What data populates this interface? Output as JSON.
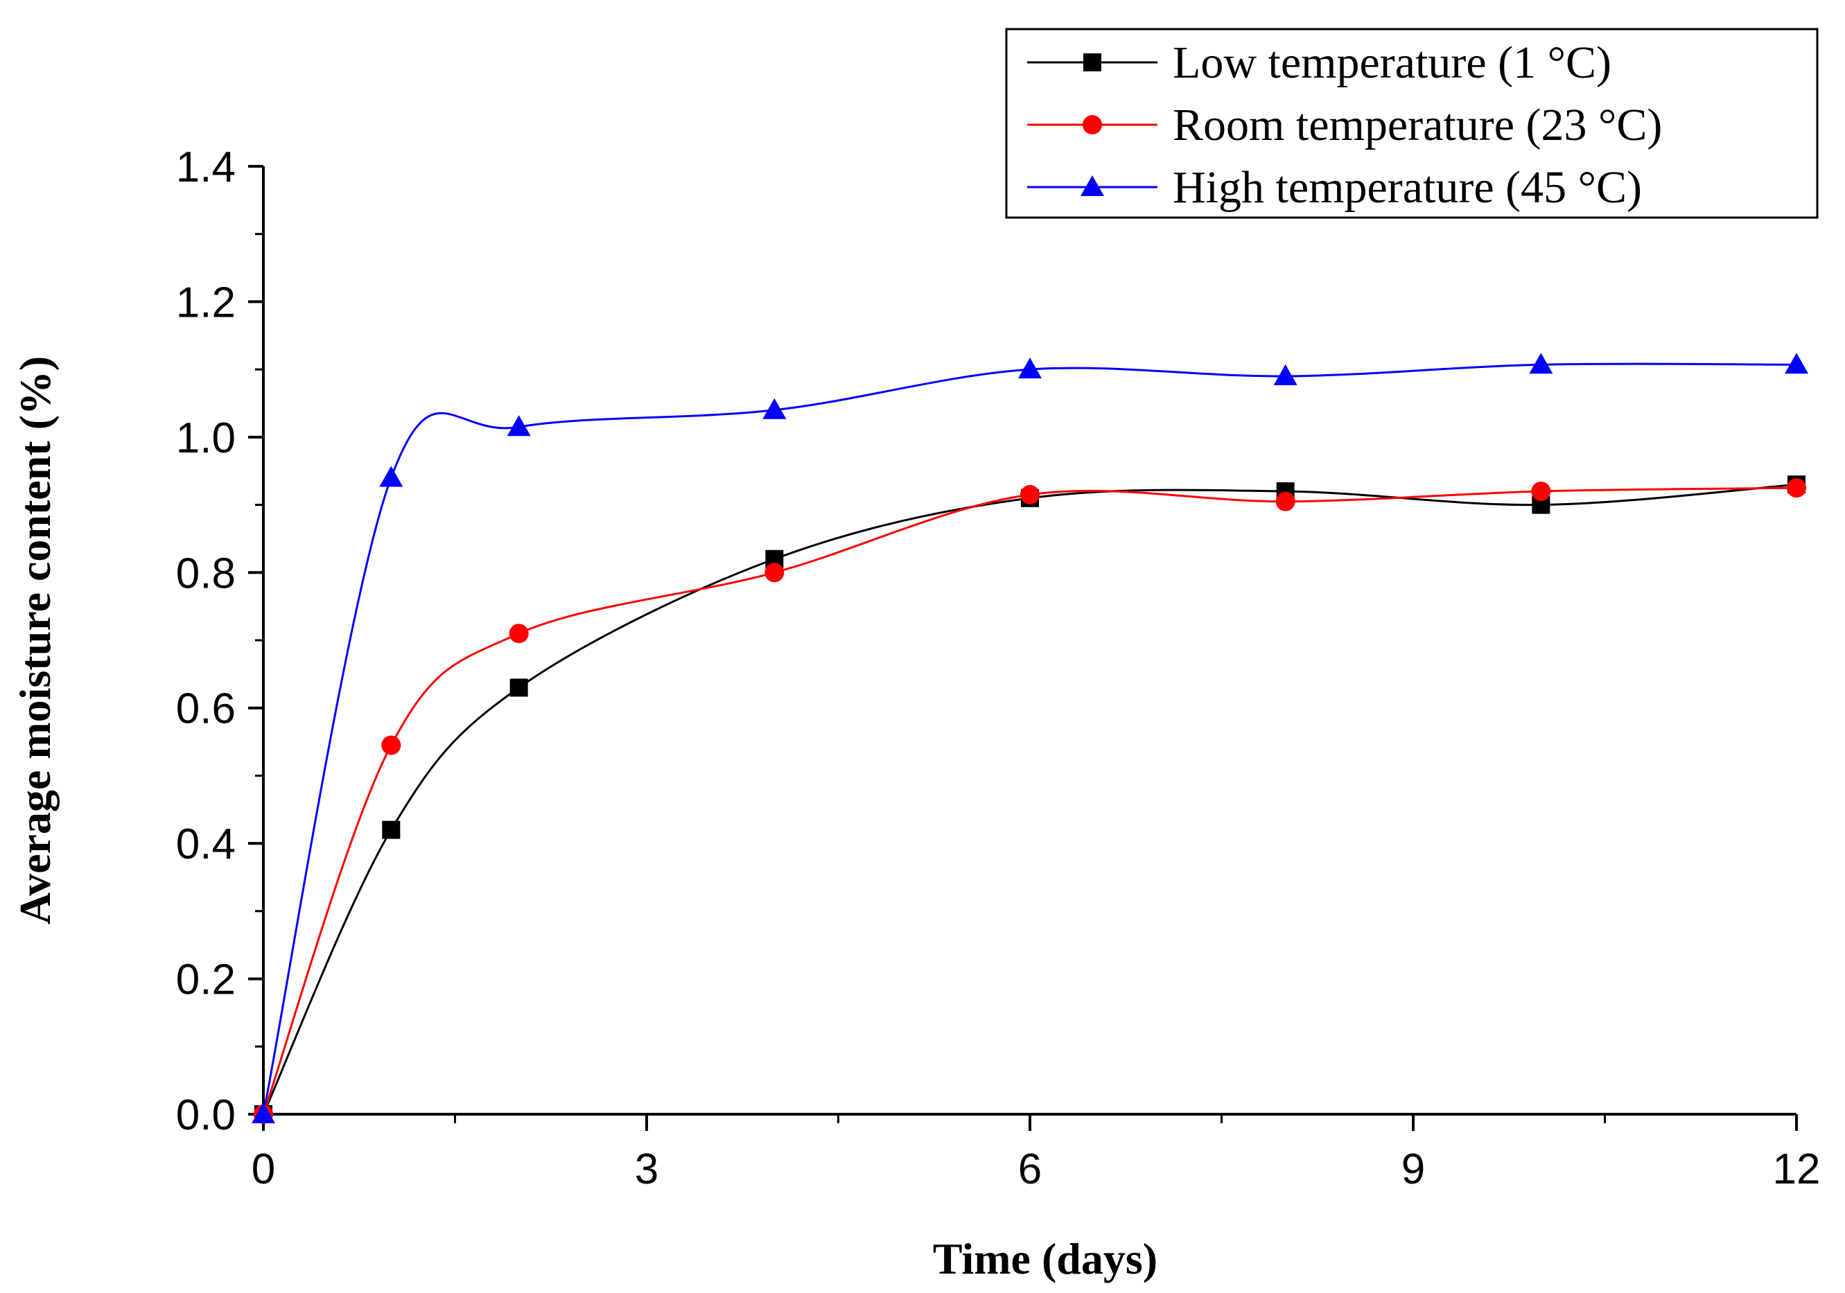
{
  "chart_data": {
    "type": "line",
    "title": "",
    "xlabel": "Time (days)",
    "ylabel": "Average moisture content (%)",
    "xlim": [
      0,
      12
    ],
    "ylim": [
      0,
      1.4
    ],
    "xticks": [
      0,
      3,
      6,
      9,
      12
    ],
    "xtick_labels": [
      "0",
      "3",
      "6",
      "9",
      "12"
    ],
    "yticks": [
      0,
      0.2,
      0.4,
      0.6,
      0.8,
      1.0,
      1.2,
      1.4
    ],
    "ytick_labels": [
      "0.0",
      "0.2",
      "0.4",
      "0.6",
      "0.8",
      "1.0",
      "1.2",
      "1.4"
    ],
    "grid": false,
    "legend_position": "top-right",
    "x": [
      0,
      1,
      2,
      4,
      6,
      8,
      10,
      12
    ],
    "series": [
      {
        "name": "Low temperature (1 °C)",
        "color": "#000000",
        "marker": "square",
        "values": [
          0,
          0.42,
          0.63,
          0.82,
          0.91,
          0.92,
          0.9,
          0.93
        ]
      },
      {
        "name": "Room temperature (23 °C)",
        "color": "#ff0000",
        "marker": "circle",
        "values": [
          0,
          0.545,
          0.71,
          0.8,
          0.915,
          0.905,
          0.92,
          0.925
        ]
      },
      {
        "name": "High temperature (45 °C)",
        "color": "#0000ff",
        "marker": "triangle",
        "values": [
          0,
          0.94,
          1.015,
          1.04,
          1.1,
          1.09,
          1.107,
          1.107
        ]
      }
    ]
  }
}
